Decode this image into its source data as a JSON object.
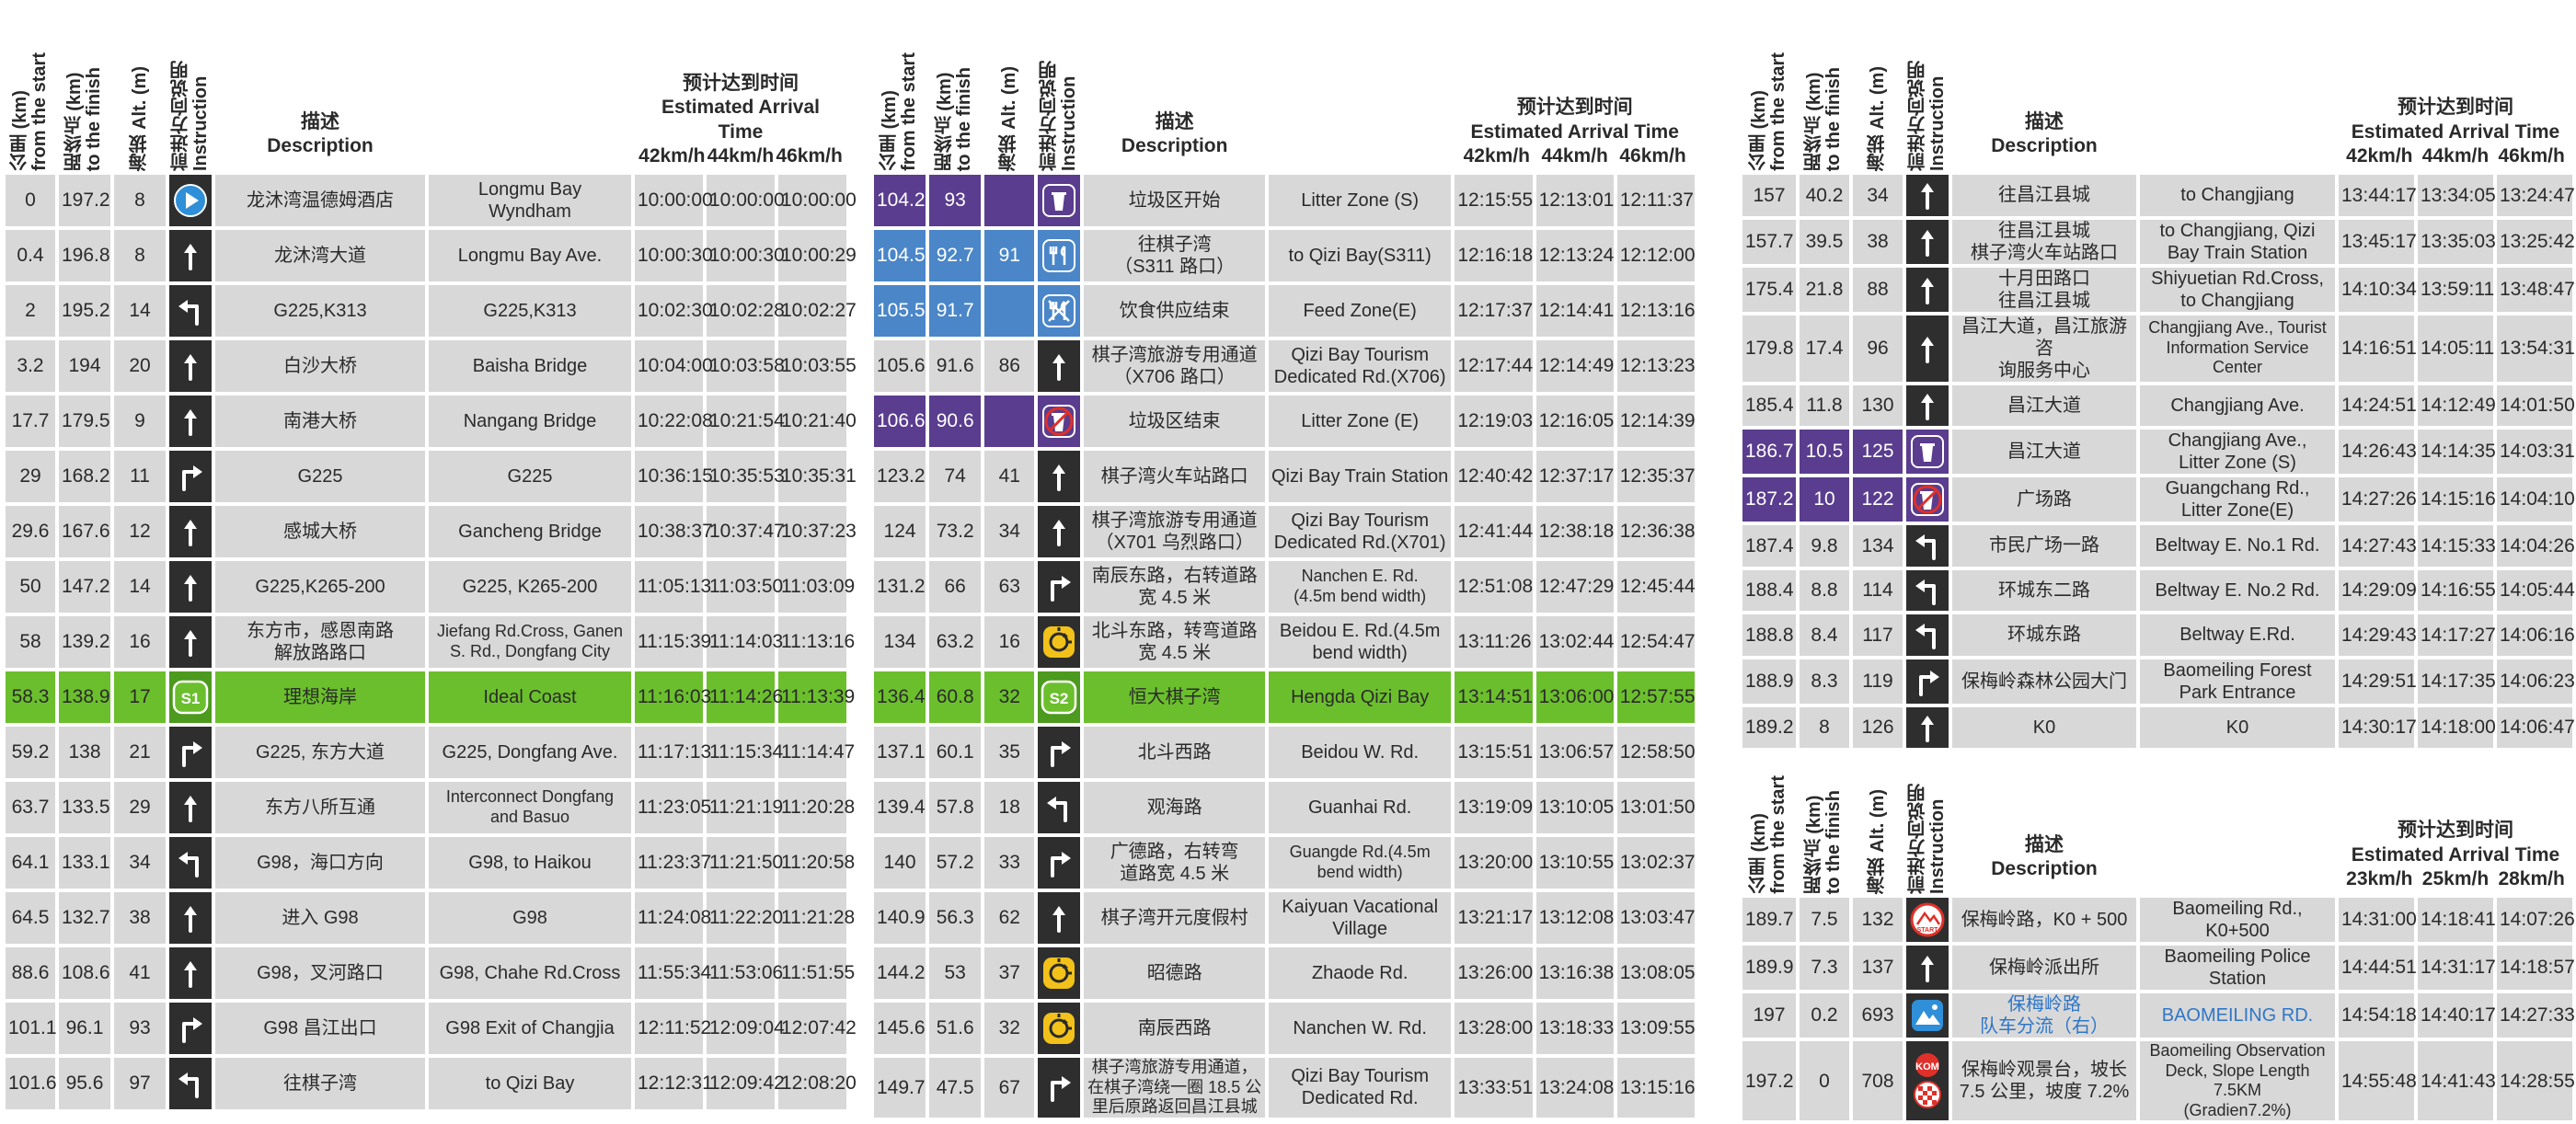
{
  "headers": {
    "km_start": "公里 (km)\nfrom the start",
    "km_finish": "距终点 (km)\nto the finish",
    "alt": "海拔 Alt. (m)",
    "instruction": "前进方向说明\nInstruction",
    "description": "描述\nDescription",
    "eta": "预计达到时间\nEstimated Arrival Time"
  },
  "speeds_main": [
    "42km/h",
    "44km/h",
    "46km/h"
  ],
  "speeds_climb": [
    "23km/h",
    "25km/h",
    "28km/h"
  ],
  "colors": {
    "green": "#6bbf2d",
    "purple": "#5a3d8e",
    "blue": "#4a86c8",
    "cell": "#d8d8d8",
    "icon_bg": "#2e2e2e",
    "sprint_badge": "#6bbf2d",
    "roundabout": "#f2c21b"
  },
  "table1": [
    {
      "km": "0",
      "fin": "197.2",
      "alt": "8",
      "icon": "start-play-icon",
      "zh": "龙沐湾温德姆酒店",
      "en": "Longmu Bay\nWyndham",
      "t": [
        "10:00:00",
        "10:00:00",
        "10:00:00"
      ]
    },
    {
      "km": "0.4",
      "fin": "196.8",
      "alt": "8",
      "icon": "straight-arrow-icon",
      "zh": "龙沐湾大道",
      "en": "Longmu Bay Ave.",
      "t": [
        "10:00:30",
        "10:00:30",
        "10:00:29"
      ]
    },
    {
      "km": "2",
      "fin": "195.2",
      "alt": "14",
      "icon": "turn-left-icon",
      "zh": "G225,K313",
      "en": "G225,K313",
      "t": [
        "10:02:30",
        "10:02:28",
        "10:02:27"
      ]
    },
    {
      "km": "3.2",
      "fin": "194",
      "alt": "20",
      "icon": "straight-arrow-icon",
      "zh": "白沙大桥",
      "en": "Baisha Bridge",
      "t": [
        "10:04:00",
        "10:03:58",
        "10:03:55"
      ]
    },
    {
      "km": "17.7",
      "fin": "179.5",
      "alt": "9",
      "icon": "straight-arrow-icon",
      "zh": "南港大桥",
      "en": "Nangang Bridge",
      "t": [
        "10:22:08",
        "10:21:54",
        "10:21:40"
      ]
    },
    {
      "km": "29",
      "fin": "168.2",
      "alt": "11",
      "icon": "turn-right-icon",
      "zh": "G225",
      "en": "G225",
      "t": [
        "10:36:15",
        "10:35:53",
        "10:35:31"
      ]
    },
    {
      "km": "29.6",
      "fin": "167.6",
      "alt": "12",
      "icon": "straight-arrow-icon",
      "zh": "感城大桥",
      "en": "Gancheng Bridge",
      "t": [
        "10:38:37",
        "10:37:47",
        "10:37:23"
      ]
    },
    {
      "km": "50",
      "fin": "147.2",
      "alt": "14",
      "icon": "straight-arrow-icon",
      "zh": "G225,K265-200",
      "en": "G225, K265-200",
      "t": [
        "11:05:13",
        "11:03:50",
        "11:03:09"
      ]
    },
    {
      "km": "58",
      "fin": "139.2",
      "alt": "16",
      "icon": "straight-arrow-icon",
      "zh": "东方市，感恩南路\n解放路路口",
      "en": "Jiefang Rd.Cross, Ganen\nS. Rd., Dongfang City",
      "t": [
        "11:15:39",
        "11:14:03",
        "11:13:16"
      ],
      "ensmall": true
    },
    {
      "km": "58.3",
      "fin": "138.9",
      "alt": "17",
      "icon": "sprint-s1-icon",
      "badge": "S1",
      "zh": "理想海岸",
      "en": "Ideal Coast",
      "t": [
        "11:16:03",
        "11:14:26",
        "11:13:39"
      ],
      "style": "green"
    },
    {
      "km": "59.2",
      "fin": "138",
      "alt": "21",
      "icon": "turn-right-icon",
      "zh": "G225, 东方大道",
      "en": "G225, Dongfang Ave.",
      "t": [
        "11:17:13",
        "11:15:34",
        "11:14:47"
      ]
    },
    {
      "km": "63.7",
      "fin": "133.5",
      "alt": "29",
      "icon": "straight-arrow-icon",
      "zh": "东方八所互通",
      "en": "Interconnect Dongfang\nand Basuo",
      "t": [
        "11:23:05",
        "11:21:19",
        "11:20:28"
      ],
      "ensmall": true
    },
    {
      "km": "64.1",
      "fin": "133.1",
      "alt": "34",
      "icon": "turn-left-icon",
      "zh": "G98，海口方向",
      "en": "G98, to Haikou",
      "t": [
        "11:23:37",
        "11:21:50",
        "11:20:58"
      ]
    },
    {
      "km": "64.5",
      "fin": "132.7",
      "alt": "38",
      "icon": "straight-arrow-icon",
      "zh": "进入 G98",
      "en": "G98",
      "t": [
        "11:24:08",
        "11:22:20",
        "11:21:28"
      ]
    },
    {
      "km": "88.6",
      "fin": "108.6",
      "alt": "41",
      "icon": "straight-arrow-icon",
      "zh": "G98，叉河路口",
      "en": "G98, Chahe Rd.Cross",
      "t": [
        "11:55:34",
        "11:53:06",
        "11:51:55"
      ]
    },
    {
      "km": "101.1",
      "fin": "96.1",
      "alt": "93",
      "icon": "turn-right-icon",
      "zh": "G98 昌江出口",
      "en": "G98 Exit of Changjia",
      "t": [
        "12:11:52",
        "12:09:04",
        "12:07:42"
      ]
    },
    {
      "km": "101.6",
      "fin": "95.6",
      "alt": "97",
      "icon": "turn-left-icon",
      "zh": "往棋子湾",
      "en": "to Qizi Bay",
      "t": [
        "12:12:31",
        "12:09:42",
        "12:08:20"
      ]
    }
  ],
  "table2": [
    {
      "km": "104.2",
      "fin": "93",
      "alt": "",
      "icon": "litter-zone-icon",
      "zh": "垃圾区开始",
      "en": "Litter Zone (S)",
      "t": [
        "12:15:55",
        "12:13:01",
        "12:11:37"
      ],
      "style": "purple"
    },
    {
      "km": "104.5",
      "fin": "92.7",
      "alt": "91",
      "icon": "feed-zone-icon",
      "zh": "往棋子湾\n（S311 路口）",
      "en": "to Qizi Bay(S311)",
      "t": [
        "12:16:18",
        "12:13:24",
        "12:12:00"
      ],
      "style": "blue"
    },
    {
      "km": "105.5",
      "fin": "91.7",
      "alt": "",
      "icon": "feed-zone-end-icon",
      "zh": "饮食供应结束",
      "en": "Feed Zone(E)",
      "t": [
        "12:17:37",
        "12:14:41",
        "12:13:16"
      ],
      "style": "blue"
    },
    {
      "km": "105.6",
      "fin": "91.6",
      "alt": "86",
      "icon": "straight-arrow-icon",
      "zh": "棋子湾旅游专用通道\n（X706 路口）",
      "en": "Qizi Bay Tourism\nDedicated Rd.(X706)",
      "t": [
        "12:17:44",
        "12:14:49",
        "12:13:23"
      ]
    },
    {
      "km": "106.6",
      "fin": "90.6",
      "alt": "",
      "icon": "litter-zone-end-icon",
      "zh": "垃圾区结束",
      "en": "Litter Zone (E)",
      "t": [
        "12:19:03",
        "12:16:05",
        "12:14:39"
      ],
      "style": "purple"
    },
    {
      "km": "123.2",
      "fin": "74",
      "alt": "41",
      "icon": "straight-arrow-icon",
      "zh": "棋子湾火车站路口",
      "en": "Qizi Bay Train Station",
      "t": [
        "12:40:42",
        "12:37:17",
        "12:35:37"
      ]
    },
    {
      "km": "124",
      "fin": "73.2",
      "alt": "34",
      "icon": "straight-arrow-icon",
      "zh": "棋子湾旅游专用通道\n（X701 乌烈路口）",
      "en": "Qizi Bay Tourism\nDedicated Rd.(X701)",
      "t": [
        "12:41:44",
        "12:38:18",
        "12:36:38"
      ]
    },
    {
      "km": "131.2",
      "fin": "66",
      "alt": "63",
      "icon": "turn-right-icon",
      "zh": "南辰东路，右转道路\n宽 4.5 米",
      "en": "Nanchen E. Rd.\n(4.5m bend width)",
      "t": [
        "12:51:08",
        "12:47:29",
        "12:45:44"
      ],
      "ensmall": true
    },
    {
      "km": "134",
      "fin": "63.2",
      "alt": "16",
      "icon": "roundabout-icon",
      "zh": "北斗东路，转弯道路\n宽 4.5 米",
      "en": "Beidou E. Rd.(4.5m\nbend width)",
      "t": [
        "13:11:26",
        "13:02:44",
        "12:54:47"
      ]
    },
    {
      "km": "136.4",
      "fin": "60.8",
      "alt": "32",
      "icon": "sprint-s2-icon",
      "badge": "S2",
      "zh": "恒大棋子湾",
      "en": "Hengda Qizi Bay",
      "t": [
        "13:14:51",
        "13:06:00",
        "12:57:55"
      ],
      "style": "green"
    },
    {
      "km": "137.1",
      "fin": "60.1",
      "alt": "35",
      "icon": "turn-right-icon",
      "zh": "北斗西路",
      "en": "Beidou W. Rd.",
      "t": [
        "13:15:51",
        "13:06:57",
        "12:58:50"
      ]
    },
    {
      "km": "139.4",
      "fin": "57.8",
      "alt": "18",
      "icon": "turn-left-icon",
      "zh": "观海路",
      "en": "Guanhai Rd.",
      "t": [
        "13:19:09",
        "13:10:05",
        "13:01:50"
      ]
    },
    {
      "km": "140",
      "fin": "57.2",
      "alt": "33",
      "icon": "turn-right-icon",
      "zh": "广德路，右转弯\n道路宽 4.5 米",
      "en": "Guangde Rd.(4.5m\nbend width)",
      "t": [
        "13:20:00",
        "13:10:55",
        "13:02:37"
      ],
      "ensmall": true
    },
    {
      "km": "140.9",
      "fin": "56.3",
      "alt": "62",
      "icon": "straight-arrow-icon",
      "zh": "棋子湾开元度假村",
      "en": "Kaiyuan Vacational\nVillage",
      "t": [
        "13:21:17",
        "13:12:08",
        "13:03:47"
      ]
    },
    {
      "km": "144.2",
      "fin": "53",
      "alt": "37",
      "icon": "roundabout-icon",
      "zh": "昭德路",
      "en": "Zhaode Rd.",
      "t": [
        "13:26:00",
        "13:16:38",
        "13:08:05"
      ]
    },
    {
      "km": "145.6",
      "fin": "51.6",
      "alt": "32",
      "icon": "roundabout-icon",
      "zh": "南辰西路",
      "en": "Nanchen W. Rd.",
      "t": [
        "13:28:00",
        "13:18:33",
        "13:09:55"
      ]
    },
    {
      "km": "149.7",
      "fin": "47.5",
      "alt": "67",
      "icon": "turn-right-icon",
      "zh": "棋子湾旅游专用通道，\n在棋子湾绕一圈 18.5 公\n里后原路返回昌江县城",
      "en": "Qizi Bay Tourism\nDedicated Rd.",
      "t": [
        "13:33:51",
        "13:24:08",
        "13:15:16"
      ],
      "zhsmall": true
    }
  ],
  "table3": [
    {
      "km": "157",
      "fin": "40.2",
      "alt": "34",
      "icon": "straight-arrow-icon",
      "zh": "往昌江县城",
      "en": "to Changjiang",
      "t": [
        "13:44:17",
        "13:34:05",
        "13:24:47"
      ]
    },
    {
      "km": "157.7",
      "fin": "39.5",
      "alt": "38",
      "icon": "straight-arrow-icon",
      "zh": "往昌江县城\n棋子湾火车站路口",
      "en": "to Changjiang, Qizi\nBay Train Station",
      "t": [
        "13:45:17",
        "13:35:03",
        "13:25:42"
      ]
    },
    {
      "km": "175.4",
      "fin": "21.8",
      "alt": "88",
      "icon": "straight-arrow-icon",
      "zh": "十月田路口\n往昌江县城",
      "en": "Shiyuetian Rd.Cross,\nto Changjiang",
      "t": [
        "14:10:34",
        "13:59:11",
        "13:48:47"
      ]
    },
    {
      "km": "179.8",
      "fin": "17.4",
      "alt": "96",
      "icon": "straight-arrow-icon",
      "zh": "昌江大道，昌江旅游咨\n询服务中心",
      "en": "Changjiang Ave., Tourist\nInformation Service Center",
      "t": [
        "14:16:51",
        "14:05:11",
        "13:54:31"
      ],
      "ensmall": true
    },
    {
      "km": "185.4",
      "fin": "11.8",
      "alt": "130",
      "icon": "straight-arrow-icon",
      "zh": "昌江大道",
      "en": "Changjiang Ave.",
      "t": [
        "14:24:51",
        "14:12:49",
        "14:01:50"
      ]
    },
    {
      "km": "186.7",
      "fin": "10.5",
      "alt": "125",
      "icon": "litter-zone-icon",
      "zh": "昌江大道",
      "en": "Changjiang Ave.,\nLitter Zone (S)",
      "t": [
        "14:26:43",
        "14:14:35",
        "14:03:31"
      ],
      "style": "purple"
    },
    {
      "km": "187.2",
      "fin": "10",
      "alt": "122",
      "icon": "litter-zone-end-icon",
      "zh": "广场路",
      "en": "Guangchang Rd.,\nLitter Zone(E)",
      "t": [
        "14:27:26",
        "14:15:16",
        "14:04:10"
      ],
      "style": "purple"
    },
    {
      "km": "187.4",
      "fin": "9.8",
      "alt": "134",
      "icon": "turn-left-icon",
      "zh": "市民广场一路",
      "en": "Beltway E. No.1 Rd.",
      "t": [
        "14:27:43",
        "14:15:33",
        "14:04:26"
      ]
    },
    {
      "km": "188.4",
      "fin": "8.8",
      "alt": "114",
      "icon": "turn-left-icon",
      "zh": "环城东二路",
      "en": "Beltway E. No.2 Rd.",
      "t": [
        "14:29:09",
        "14:16:55",
        "14:05:44"
      ]
    },
    {
      "km": "188.8",
      "fin": "8.4",
      "alt": "117",
      "icon": "turn-left-icon",
      "zh": "环城东路",
      "en": "Beltway E.Rd.",
      "t": [
        "14:29:43",
        "14:17:27",
        "14:06:16"
      ]
    },
    {
      "km": "188.9",
      "fin": "8.3",
      "alt": "119",
      "icon": "turn-right-icon",
      "zh": "保梅岭森林公园大门",
      "en": "Baomeiling Forest\nPark Entrance",
      "t": [
        "14:29:51",
        "14:17:35",
        "14:06:23"
      ]
    },
    {
      "km": "189.2",
      "fin": "8",
      "alt": "126",
      "icon": "straight-arrow-icon",
      "zh": "K0",
      "en": "K0",
      "t": [
        "14:30:17",
        "14:18:00",
        "14:06:47"
      ]
    }
  ],
  "table4": [
    {
      "km": "189.7",
      "fin": "7.5",
      "alt": "132",
      "icon": "climb-start-icon",
      "icon_label": "START",
      "zh": "保梅岭路，K0 + 500",
      "en": "Baomeiling Rd.,\nK0+500",
      "t": [
        "14:31:00",
        "14:18:41",
        "14:07:26"
      ]
    },
    {
      "km": "189.9",
      "fin": "7.3",
      "alt": "137",
      "icon": "straight-arrow-icon",
      "zh": "保梅岭派出所",
      "en": "Baomeiling Police\nStation",
      "t": [
        "14:44:51",
        "14:31:17",
        "14:18:57"
      ]
    },
    {
      "km": "197",
      "fin": "0.2",
      "alt": "693",
      "icon": "mountain-icon",
      "zh": "保梅岭路\n队车分流（右）",
      "en": "BAOMEILING RD.",
      "t": [
        "14:54:18",
        "14:40:17",
        "14:27:33"
      ],
      "bluetext": true
    },
    {
      "km": "197.2",
      "fin": "0",
      "alt": "708",
      "icon": "kom-finish-icon",
      "icon_label": "KOM",
      "zh": "保梅岭观景台，坡长\n7.5 公里，坡度 7.2%",
      "en": "Baomeiling Observation\nDeck, Slope Length 7.5KM\n(Gradien7.2%)",
      "t": [
        "14:55:48",
        "14:41:43",
        "14:28:55"
      ],
      "ensmall": true
    }
  ]
}
